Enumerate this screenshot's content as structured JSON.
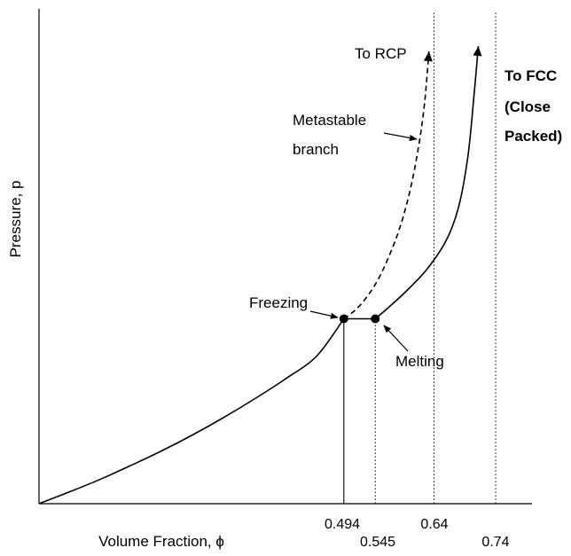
{
  "chart_data": {
    "type": "line",
    "title": "",
    "xlabel": "Volume Fraction, ϕ",
    "ylabel": "Pressure, p",
    "xticks": [
      "0.494",
      "0.545",
      "0.64",
      "0.74"
    ],
    "series": [
      {
        "kind": "solid",
        "x": [
          0.0,
          0.05,
          0.1,
          0.15,
          0.2,
          0.25,
          0.3,
          0.35,
          0.4,
          0.45,
          0.494
        ],
        "y": [
          0.0,
          0.9,
          1.85,
          2.9,
          4.0,
          5.2,
          6.5,
          7.9,
          9.4,
          11.1,
          13.9
        ]
      },
      {
        "kind": "solid",
        "x": [
          0.494,
          0.545
        ],
        "y": [
          13.9,
          13.9
        ]
      },
      {
        "kind": "solid",
        "x": [
          0.545,
          0.57,
          0.6,
          0.63,
          0.66,
          0.68,
          0.695,
          0.705,
          0.712
        ],
        "y": [
          13.9,
          14.9,
          16.2,
          17.7,
          19.8,
          22.3,
          26.1,
          30.7,
          34.4
        ]
      },
      {
        "kind": "dashed",
        "x": [
          0.494,
          0.52,
          0.55,
          0.58,
          0.6,
          0.615,
          0.625,
          0.632
        ],
        "y": [
          13.9,
          14.9,
          16.9,
          20.1,
          23.3,
          26.8,
          30.2,
          34.0
        ]
      }
    ],
    "points": [
      {
        "x": 0.494,
        "y": 13.9
      },
      {
        "x": 0.545,
        "y": 13.9
      }
    ],
    "reference_lines": [
      {
        "x": 0.494,
        "style": "solid",
        "from_y": 0,
        "to_y": 13.9
      },
      {
        "x": 0.545,
        "style": "dotted",
        "from_y": 0,
        "to_y": 13.9
      },
      {
        "x": 0.64,
        "style": "dotted"
      },
      {
        "x": 0.74,
        "style": "dotted"
      }
    ],
    "annotations": {
      "to_rcp": "To RCP",
      "to_fcc_1": "To FCC",
      "to_fcc_2": "(Close",
      "to_fcc_3": "Packed)",
      "metastable_1": "Metastable",
      "metastable_2": "branch",
      "freezing": "Freezing",
      "melting": "Melting"
    },
    "xlim": [
      0,
      0.74
    ],
    "ylim": [
      0,
      36
    ],
    "grid": false,
    "legend": "none"
  }
}
